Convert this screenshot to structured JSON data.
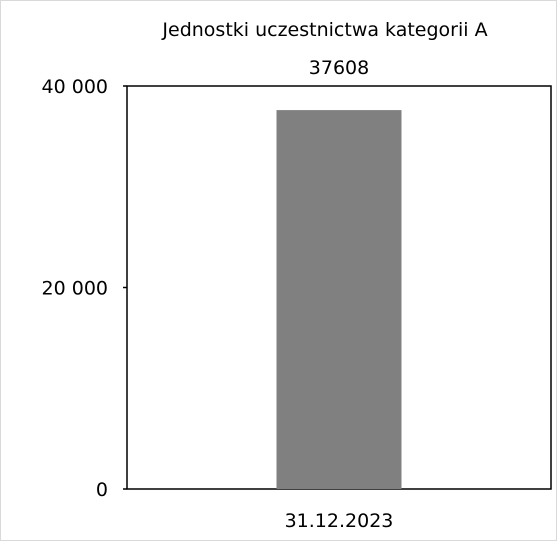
{
  "chart_data": {
    "type": "bar",
    "title": "Jednostki uczestnictwa kategorii A",
    "categories": [
      "31.12.2023"
    ],
    "values": [
      37608
    ],
    "data_labels": [
      "37608"
    ],
    "xlabel": "",
    "ylabel": "",
    "ylim": [
      0,
      40000
    ],
    "yticks": [
      0,
      20000,
      40000
    ],
    "ytick_labels": [
      "0",
      "20 000",
      "40 000"
    ],
    "grid": false,
    "legend": "none",
    "colors": {
      "bar": "#808080",
      "axis": "#000000"
    }
  }
}
